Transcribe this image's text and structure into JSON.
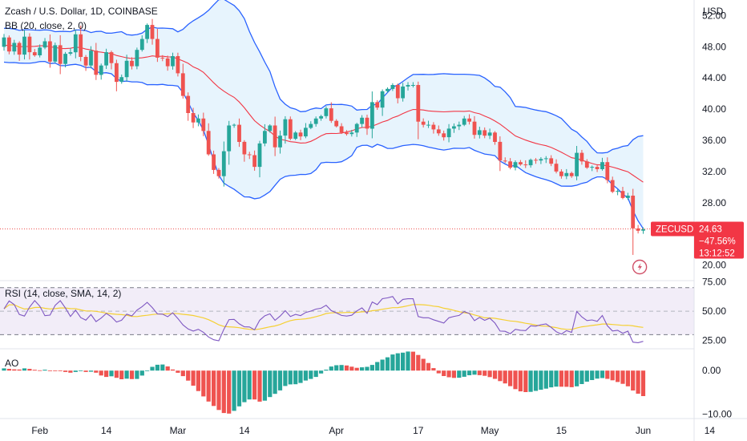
{
  "header": {
    "title": "Zcash / U.S. Dollar, 1D, COINBASE",
    "indicator_bb": "BB (20, close, 2, 0)",
    "indicator_rsi": "RSI (14, close, SMA, 14, 2)",
    "indicator_ao": "AO",
    "currency": "USD"
  },
  "price_badge": {
    "symbol": "ZECUSD",
    "price": "24.63",
    "change": "−47.56%",
    "countdown": "13:12:52"
  },
  "colors": {
    "up": "#26a69a",
    "down": "#ef5350",
    "bb_band": "#2962ff",
    "bb_basis": "#f23645",
    "bb_fill": "#e3f2fd",
    "rsi_line": "#7e57c2",
    "rsi_ma": "#f5d033",
    "rsi_band": "#ede7f6"
  },
  "chart_data": [
    {
      "type": "candlestick",
      "title": "Zcash / U.S. Dollar, 1D, COINBASE",
      "ylabel": "USD",
      "ylim": [
        18,
        54
      ],
      "yticks": [
        20,
        24,
        28,
        32,
        36,
        40,
        44,
        48,
        52
      ],
      "ytick_labels": [
        "20.00",
        "24.00",
        "28.00",
        "32.00",
        "36.00",
        "40.00",
        "44.00",
        "48.00",
        "52.00"
      ],
      "x_labels": [
        "Feb",
        "14",
        "Mar",
        "14",
        "Apr",
        "17",
        "May",
        "15",
        "Jun",
        "14"
      ],
      "x_label_days": [
        7,
        20,
        34,
        47,
        65,
        81,
        95,
        109,
        125,
        138
      ],
      "close": [
        49.2,
        47.4,
        48.5,
        47.0,
        49.3,
        47.3,
        46.9,
        47.9,
        48.7,
        46.1,
        48.2,
        45.8,
        47.1,
        47.3,
        49.6,
        46.7,
        45.6,
        47.5,
        44.4,
        45.6,
        47.3,
        45.9,
        43.5,
        44.1,
        46.2,
        45.5,
        47.6,
        49.0,
        50.8,
        49.0,
        46.6,
        46.5,
        45.5,
        46.8,
        44.6,
        41.7,
        39.5,
        38.3,
        38.8,
        37.2,
        34.2,
        32.2,
        31.4,
        34.6,
        37.9,
        38.0,
        35.8,
        34.2,
        34.1,
        32.6,
        35.6,
        37.2,
        37.9,
        35.1,
        36.6,
        38.7,
        36.2,
        37.0,
        36.5,
        37.6,
        38.1,
        38.8,
        39.1,
        40.1,
        38.5,
        37.8,
        37.0,
        36.8,
        37.0,
        38.1,
        38.9,
        37.5,
        40.9,
        40.2,
        42.3,
        42.6,
        43.1,
        41.4,
        42.9,
        43.1,
        43.1,
        38.4,
        38.0,
        38.0,
        37.4,
        36.9,
        36.4,
        37.5,
        37.8,
        38.0,
        38.8,
        38.4,
        36.7,
        37.3,
        36.6,
        37.0,
        35.8,
        33.4,
        33.3,
        32.5,
        33.2,
        32.9,
        32.8,
        33.5,
        33.4,
        33.6,
        33.7,
        33.0,
        32.0,
        31.4,
        31.8,
        31.4,
        34.4,
        33.3,
        32.5,
        32.6,
        32.3,
        33.2,
        30.9,
        29.4,
        29.5,
        28.6,
        28.9,
        24.7,
        24.4,
        24.6
      ],
      "x_day_of_first_bar": 0,
      "last_price": 24.63,
      "last_price_label": "ZECUSD"
    },
    {
      "type": "line",
      "title": "RSI (14, close, SMA, 14, 2)",
      "ylim": [
        18,
        76
      ],
      "yticks": [
        25,
        50,
        75
      ],
      "ytick_labels": [
        "25.00",
        "50.00",
        "75.00"
      ],
      "bands": [
        30,
        70
      ]
    },
    {
      "type": "bar",
      "title": "AO",
      "ylim": [
        -11,
        5
      ],
      "yticks": [
        0,
        -10
      ],
      "ytick_labels": [
        "0.00",
        "−10.00"
      ]
    }
  ]
}
